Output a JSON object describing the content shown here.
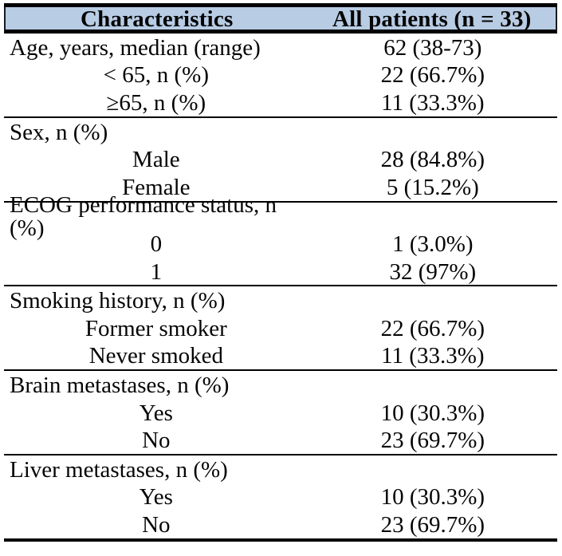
{
  "table": {
    "colors": {
      "header_bg": "#b8cce4",
      "border": "#000000",
      "text": "#050505"
    },
    "header": {
      "col1": "Characteristics",
      "col2": "All patients (n = 33)"
    },
    "sections": [
      {
        "name": "age",
        "rows": [
          {
            "label": "Age, years, median (range)",
            "value": "62 (38-73)",
            "indent": false
          },
          {
            "label": "< 65, n (%)",
            "value": "22 (66.7%)",
            "indent": true
          },
          {
            "label": "≥65, n (%)",
            "value": "11 (33.3%)",
            "indent": true
          }
        ]
      },
      {
        "name": "sex",
        "rows": [
          {
            "label": "Sex, n (%)",
            "value": "",
            "indent": false
          },
          {
            "label": "Male",
            "value": "28 (84.8%)",
            "indent": true
          },
          {
            "label": "Female",
            "value": "5 (15.2%)",
            "indent": true
          }
        ]
      },
      {
        "name": "ecog",
        "rows": [
          {
            "label": "ECOG performance status, n (%)",
            "value": "",
            "indent": false
          },
          {
            "label": "0",
            "value": "1 (3.0%)",
            "indent": true
          },
          {
            "label": "1",
            "value": "32 (97%)",
            "indent": true
          }
        ]
      },
      {
        "name": "smoking",
        "rows": [
          {
            "label": "Smoking history, n (%)",
            "value": "",
            "indent": false
          },
          {
            "label": "Former smoker",
            "value": "22 (66.7%)",
            "indent": true
          },
          {
            "label": "Never smoked",
            "value": "11 (33.3%)",
            "indent": true
          }
        ]
      },
      {
        "name": "brain-metastases",
        "rows": [
          {
            "label": "Brain metastases, n (%)",
            "value": "",
            "indent": false
          },
          {
            "label": "Yes",
            "value": "10 (30.3%)",
            "indent": true
          },
          {
            "label": "No",
            "value": "23 (69.7%)",
            "indent": true
          }
        ]
      },
      {
        "name": "liver-metastases",
        "rows": [
          {
            "label": "Liver metastases, n (%)",
            "value": "",
            "indent": false
          },
          {
            "label": "Yes",
            "value": "10 (30.3%)",
            "indent": true
          },
          {
            "label": "No",
            "value": "23 (69.7%)",
            "indent": true
          }
        ]
      }
    ]
  }
}
